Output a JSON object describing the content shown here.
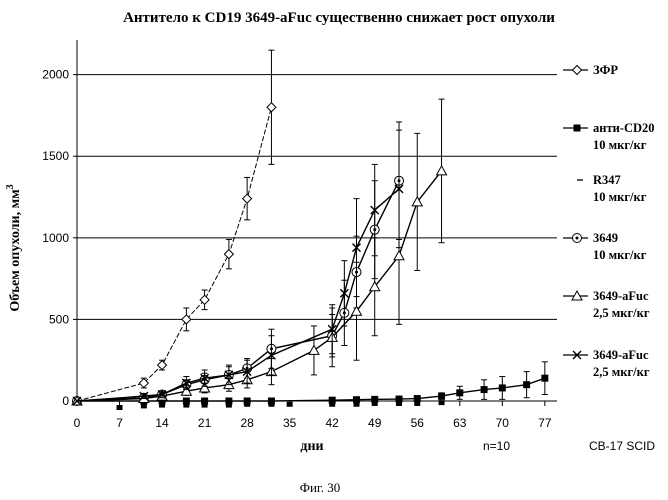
{
  "chart_data": {
    "type": "line",
    "title": "Антитело к CD19 3649-aFuc существенно снижает рост опухоли",
    "xlabel": "дни",
    "ylabel": "Объем опухоли, мм",
    "ylabel_superscript": "3",
    "x_ticks": [
      0,
      7,
      14,
      21,
      28,
      35,
      42,
      49,
      56,
      63,
      70,
      77
    ],
    "y_ticks": [
      0,
      500,
      1000,
      1500,
      2000
    ],
    "xlim": [
      0,
      79
    ],
    "ylim": [
      0,
      2200
    ],
    "grid": "horizontal",
    "legend_position": "right",
    "series": [
      {
        "name": "ЗФР",
        "marker": "diamond",
        "line": "dashed",
        "x": [
          0,
          11,
          14,
          18,
          21,
          25,
          28,
          32
        ],
        "y": [
          0,
          110,
          220,
          500,
          620,
          900,
          1240,
          1800
        ],
        "err": [
          0,
          30,
          30,
          70,
          60,
          90,
          130,
          350
        ]
      },
      {
        "name": "анти-CD20",
        "name_line2": "10 мкг/кг",
        "marker": "square",
        "line": "solid",
        "x": [
          0,
          11,
          14,
          18,
          21,
          25,
          28,
          32,
          42,
          46,
          49,
          53,
          56,
          60,
          63,
          67,
          70,
          74,
          77
        ],
        "y": [
          0,
          0,
          0,
          0,
          0,
          0,
          0,
          0,
          5,
          8,
          10,
          12,
          15,
          30,
          50,
          70,
          80,
          100,
          140
        ],
        "err": [
          0,
          0,
          0,
          0,
          0,
          0,
          0,
          0,
          5,
          5,
          5,
          5,
          10,
          20,
          40,
          60,
          70,
          80,
          100
        ]
      },
      {
        "name": "R347",
        "name_line2": "10 мкг/кг",
        "marker": "dash",
        "line": "solid",
        "x": [
          7,
          11,
          14,
          18,
          21,
          25,
          28,
          32,
          35,
          42,
          46,
          49,
          53,
          56,
          60
        ],
        "y": [
          -40,
          -30,
          -25,
          -25,
          -25,
          -25,
          -20,
          -20,
          -20,
          -20,
          -20,
          -15,
          -15,
          -15,
          -10
        ],
        "err": [
          0,
          0,
          0,
          0,
          0,
          0,
          0,
          0,
          0,
          0,
          0,
          0,
          0,
          0,
          0
        ]
      },
      {
        "name": "3649",
        "name_line2": "10 мкг/кг",
        "marker": "circle",
        "line": "solid",
        "x": [
          0,
          11,
          14,
          18,
          21,
          25,
          28,
          32,
          42,
          44,
          46,
          49,
          53
        ],
        "y": [
          0,
          20,
          40,
          100,
          130,
          160,
          200,
          320,
          400,
          540,
          790,
          1050,
          1350
        ],
        "err": [
          0,
          10,
          15,
          30,
          40,
          50,
          60,
          120,
          130,
          200,
          220,
          300,
          360
        ]
      },
      {
        "name": "3649-aFuc",
        "name_line2": "2,5 мкг/кг",
        "marker": "triangle",
        "line": "solid",
        "x": [
          0,
          11,
          14,
          18,
          21,
          25,
          28,
          32,
          39,
          42,
          46,
          49,
          53,
          56,
          60
        ],
        "y": [
          0,
          15,
          30,
          60,
          80,
          100,
          130,
          180,
          310,
          390,
          550,
          700,
          890,
          1220,
          1410
        ],
        "err": [
          0,
          10,
          15,
          25,
          30,
          40,
          50,
          80,
          150,
          180,
          300,
          300,
          420,
          420,
          440
        ]
      },
      {
        "name": "3649-aFuc",
        "name_line2": "2,5 мкг/кг",
        "marker": "x",
        "line": "solid",
        "x": [
          0,
          11,
          14,
          18,
          21,
          25,
          28,
          32,
          42,
          44,
          46,
          49,
          53
        ],
        "y": [
          0,
          30,
          40,
          110,
          140,
          160,
          180,
          280,
          440,
          660,
          940,
          1170,
          1300
        ],
        "err": [
          0,
          15,
          20,
          40,
          50,
          60,
          70,
          120,
          150,
          200,
          300,
          280,
          360
        ]
      }
    ],
    "annotations": [
      "n=10",
      "CB-17 SCID"
    ],
    "caption": "Фиг. 30"
  }
}
